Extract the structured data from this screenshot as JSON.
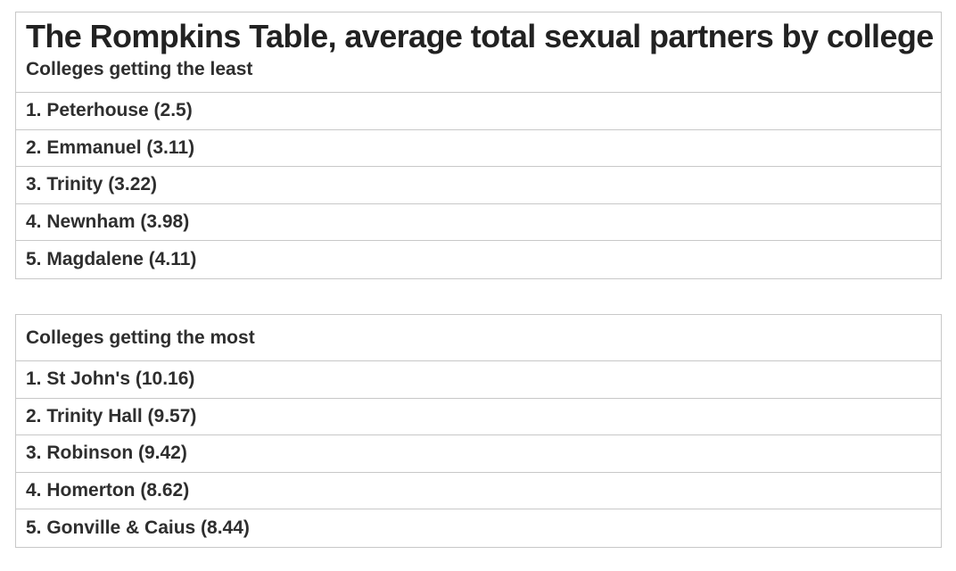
{
  "title": "The Rompkins Table, average total sexual partners by college",
  "least": {
    "heading": "Colleges getting the least",
    "rows": [
      "1. Peterhouse (2.5)",
      "2. Emmanuel (3.11)",
      "3. Trinity (3.22)",
      "4. Newnham (3.98)",
      "5. Magdalene (4.11)"
    ]
  },
  "most": {
    "heading": "Colleges getting the most",
    "rows": [
      "1. St John's (10.16)",
      "2. Trinity Hall (9.57)",
      "3. Robinson (9.42)",
      "4. Homerton (8.62)",
      "5. Gonville & Caius (8.44)"
    ]
  }
}
